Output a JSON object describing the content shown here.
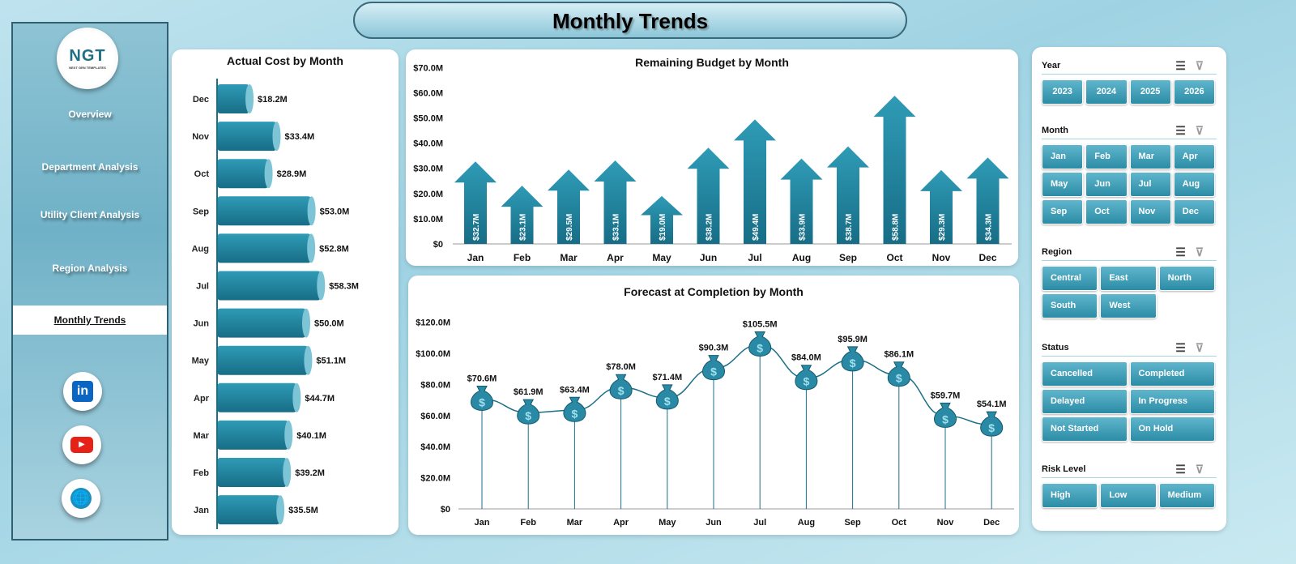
{
  "title": "Monthly Trends",
  "logo": {
    "text": "NGT",
    "subtitle": "NEXT GEN TEMPLATES"
  },
  "nav": [
    {
      "label": "Overview"
    },
    {
      "label": "Department Analysis"
    },
    {
      "label": "Utility Client Analysis"
    },
    {
      "label": "Region Analysis"
    },
    {
      "label": "Monthly Trends",
      "active": true
    }
  ],
  "social": [
    {
      "icon": "linkedin-icon"
    },
    {
      "icon": "youtube-icon"
    },
    {
      "icon": "globe-icon"
    }
  ],
  "colors": {
    "accent": "#2a8aa5",
    "dark": "#1b6f86",
    "bg": "#a8d8e6"
  },
  "chart_data": [
    {
      "type": "bar",
      "orientation": "horizontal",
      "title": "Actual Cost by Month",
      "categories": [
        "Dec",
        "Nov",
        "Oct",
        "Sep",
        "Aug",
        "Jul",
        "Jun",
        "May",
        "Apr",
        "Mar",
        "Feb",
        "Jan"
      ],
      "values": [
        18.2,
        33.4,
        28.9,
        53.0,
        52.8,
        58.3,
        50.0,
        51.1,
        44.7,
        40.1,
        39.2,
        35.5
      ],
      "labels": [
        "$18.2M",
        "$33.4M",
        "$28.9M",
        "$53.0M",
        "$52.8M",
        "$58.3M",
        "$50.0M",
        "$51.1M",
        "$44.7M",
        "$40.1M",
        "$39.2M",
        "$35.5M"
      ]
    },
    {
      "type": "bar",
      "title": "Remaining Budget by Month",
      "marker": "arrow",
      "categories": [
        "Jan",
        "Feb",
        "Mar",
        "Apr",
        "May",
        "Jun",
        "Jul",
        "Aug",
        "Sep",
        "Oct",
        "Nov",
        "Dec"
      ],
      "values": [
        32.7,
        23.1,
        29.5,
        33.1,
        19.0,
        38.2,
        49.4,
        33.9,
        38.7,
        58.8,
        29.3,
        34.3
      ],
      "labels": [
        "$32.7M",
        "$23.1M",
        "$29.5M",
        "$33.1M",
        "$19.0M",
        "$38.2M",
        "$49.4M",
        "$33.9M",
        "$38.7M",
        "$58.8M",
        "$29.3M",
        "$34.3M"
      ],
      "ylim": [
        0,
        70
      ],
      "yticks": [
        "$0",
        "$10.0M",
        "$20.0M",
        "$30.0M",
        "$40.0M",
        "$50.0M",
        "$60.0M",
        "$70.0M"
      ]
    },
    {
      "type": "line",
      "title": "Forecast at Completion by Month",
      "marker": "money-bag",
      "categories": [
        "Jan",
        "Feb",
        "Mar",
        "Apr",
        "May",
        "Jun",
        "Jul",
        "Aug",
        "Sep",
        "Oct",
        "Nov",
        "Dec"
      ],
      "values": [
        70.6,
        61.9,
        63.4,
        78.0,
        71.4,
        90.3,
        105.5,
        84.0,
        95.9,
        86.1,
        59.7,
        54.1
      ],
      "labels": [
        "$70.6M",
        "$61.9M",
        "$63.4M",
        "$78.0M",
        "$71.4M",
        "$90.3M",
        "$105.5M",
        "$84.0M",
        "$95.9M",
        "$86.1M",
        "$59.7M",
        "$54.1M"
      ],
      "ylim": [
        0,
        120
      ],
      "yticks": [
        "$0",
        "$20.0M",
        "$40.0M",
        "$60.0M",
        "$80.0M",
        "$100.0M",
        "$120.0M"
      ]
    }
  ],
  "slicers": [
    {
      "title": "Year",
      "cols": 4,
      "items": [
        "2023",
        "2024",
        "2025",
        "2026"
      ]
    },
    {
      "title": "Month",
      "cols": 4,
      "items": [
        "Jan",
        "Feb",
        "Mar",
        "Apr",
        "May",
        "Jun",
        "Jul",
        "Aug",
        "Sep",
        "Oct",
        "Nov",
        "Dec"
      ]
    },
    {
      "title": "Region",
      "cols": 3,
      "items": [
        "Central",
        "East",
        "North",
        "South",
        "West"
      ]
    },
    {
      "title": "Status",
      "cols": 2,
      "items": [
        "Cancelled",
        "Completed",
        "Delayed",
        "In Progress",
        "Not Started",
        "On Hold"
      ]
    },
    {
      "title": "Risk Level",
      "cols": 3,
      "items": [
        "High",
        "Low",
        "Medium"
      ]
    }
  ]
}
